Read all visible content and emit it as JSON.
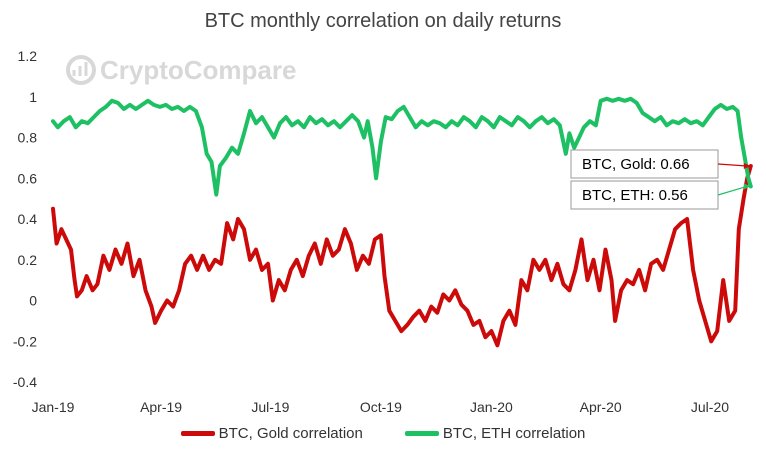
{
  "colors": {
    "gold": "#cc0a0a",
    "eth": "#1ec064",
    "callout_border": "#9a9a9a",
    "watermark": "#d8d8d8"
  },
  "watermark": {
    "icon": "bar-chart-circle-icon",
    "text": "CryptoCompare"
  },
  "callouts": {
    "gold": "BTC, Gold: 0.66",
    "eth": "BTC, ETH: 0.56"
  },
  "chart_data": {
    "type": "line",
    "title": "BTC monthly correlation on daily returns",
    "xlabel": "",
    "ylabel": "",
    "x_ticks": [
      "Jan-19",
      "Apr-19",
      "Jul-19",
      "Oct-19",
      "Jan-20",
      "Apr-20",
      "Jul-20"
    ],
    "y_ticks": [
      "-0.4",
      "-0.2",
      "0",
      "0.2",
      "0.4",
      "0.6",
      "0.8",
      "1",
      "1.2"
    ],
    "ylim": [
      -0.4,
      1.2
    ],
    "grid": false,
    "legend_position": "bottom",
    "series": [
      {
        "name": "BTC, Gold correlation",
        "color": "#cc0a0a",
        "points": [
          [
            "2019-01-01",
            0.45
          ],
          [
            "2019-01-04",
            0.28
          ],
          [
            "2019-01-08",
            0.35
          ],
          [
            "2019-01-12",
            0.3
          ],
          [
            "2019-01-16",
            0.25
          ],
          [
            "2019-01-19",
            0.1
          ],
          [
            "2019-01-21",
            0.02
          ],
          [
            "2019-01-25",
            0.05
          ],
          [
            "2019-01-29",
            0.12
          ],
          [
            "2019-02-03",
            0.05
          ],
          [
            "2019-02-07",
            0.08
          ],
          [
            "2019-02-12",
            0.22
          ],
          [
            "2019-02-17",
            0.15
          ],
          [
            "2019-02-22",
            0.25
          ],
          [
            "2019-02-27",
            0.18
          ],
          [
            "2019-03-04",
            0.28
          ],
          [
            "2019-03-09",
            0.12
          ],
          [
            "2019-03-14",
            0.2
          ],
          [
            "2019-03-19",
            0.05
          ],
          [
            "2019-03-24",
            -0.03
          ],
          [
            "2019-03-27",
            -0.11
          ],
          [
            "2019-04-01",
            -0.05
          ],
          [
            "2019-04-06",
            0.0
          ],
          [
            "2019-04-11",
            -0.03
          ],
          [
            "2019-04-16",
            0.05
          ],
          [
            "2019-04-21",
            0.18
          ],
          [
            "2019-04-26",
            0.22
          ],
          [
            "2019-05-01",
            0.15
          ],
          [
            "2019-05-06",
            0.22
          ],
          [
            "2019-05-11",
            0.15
          ],
          [
            "2019-05-16",
            0.2
          ],
          [
            "2019-05-21",
            0.18
          ],
          [
            "2019-05-26",
            0.38
          ],
          [
            "2019-05-31",
            0.3
          ],
          [
            "2019-06-04",
            0.4
          ],
          [
            "2019-06-09",
            0.35
          ],
          [
            "2019-06-14",
            0.2
          ],
          [
            "2019-06-19",
            0.25
          ],
          [
            "2019-06-24",
            0.15
          ],
          [
            "2019-06-29",
            0.18
          ],
          [
            "2019-07-03",
            0.0
          ],
          [
            "2019-07-08",
            0.1
          ],
          [
            "2019-07-13",
            0.05
          ],
          [
            "2019-07-18",
            0.15
          ],
          [
            "2019-07-23",
            0.2
          ],
          [
            "2019-07-28",
            0.12
          ],
          [
            "2019-08-02",
            0.22
          ],
          [
            "2019-08-07",
            0.28
          ],
          [
            "2019-08-12",
            0.18
          ],
          [
            "2019-08-17",
            0.3
          ],
          [
            "2019-08-22",
            0.22
          ],
          [
            "2019-08-27",
            0.25
          ],
          [
            "2019-09-01",
            0.35
          ],
          [
            "2019-09-06",
            0.28
          ],
          [
            "2019-09-11",
            0.15
          ],
          [
            "2019-09-16",
            0.22
          ],
          [
            "2019-09-21",
            0.18
          ],
          [
            "2019-09-26",
            0.3
          ],
          [
            "2019-10-01",
            0.32
          ],
          [
            "2019-10-04",
            0.12
          ],
          [
            "2019-10-08",
            -0.05
          ],
          [
            "2019-10-13",
            -0.1
          ],
          [
            "2019-10-18",
            -0.15
          ],
          [
            "2019-10-23",
            -0.12
          ],
          [
            "2019-10-28",
            -0.08
          ],
          [
            "2019-11-02",
            -0.05
          ],
          [
            "2019-11-07",
            -0.1
          ],
          [
            "2019-11-12",
            -0.03
          ],
          [
            "2019-11-17",
            -0.06
          ],
          [
            "2019-11-22",
            0.03
          ],
          [
            "2019-11-27",
            0.0
          ],
          [
            "2019-12-02",
            0.05
          ],
          [
            "2019-12-07",
            -0.02
          ],
          [
            "2019-12-12",
            -0.05
          ],
          [
            "2019-12-17",
            -0.12
          ],
          [
            "2019-12-22",
            -0.1
          ],
          [
            "2019-12-27",
            -0.18
          ],
          [
            "2020-01-01",
            -0.15
          ],
          [
            "2020-01-06",
            -0.22
          ],
          [
            "2020-01-11",
            -0.1
          ],
          [
            "2020-01-16",
            -0.05
          ],
          [
            "2020-01-21",
            -0.12
          ],
          [
            "2020-01-26",
            0.1
          ],
          [
            "2020-01-31",
            0.05
          ],
          [
            "2020-02-05",
            0.2
          ],
          [
            "2020-02-10",
            0.15
          ],
          [
            "2020-02-15",
            0.2
          ],
          [
            "2020-02-20",
            0.1
          ],
          [
            "2020-02-25",
            0.18
          ],
          [
            "2020-03-01",
            0.08
          ],
          [
            "2020-03-06",
            0.05
          ],
          [
            "2020-03-11",
            0.15
          ],
          [
            "2020-03-16",
            0.3
          ],
          [
            "2020-03-21",
            0.1
          ],
          [
            "2020-03-26",
            0.2
          ],
          [
            "2020-03-31",
            0.05
          ],
          [
            "2020-04-05",
            0.25
          ],
          [
            "2020-04-10",
            0.1
          ],
          [
            "2020-04-13",
            -0.1
          ],
          [
            "2020-04-18",
            0.05
          ],
          [
            "2020-04-23",
            0.1
          ],
          [
            "2020-04-28",
            0.08
          ],
          [
            "2020-05-03",
            0.15
          ],
          [
            "2020-05-08",
            0.05
          ],
          [
            "2020-05-13",
            0.18
          ],
          [
            "2020-05-18",
            0.2
          ],
          [
            "2020-05-23",
            0.15
          ],
          [
            "2020-05-28",
            0.25
          ],
          [
            "2020-06-02",
            0.35
          ],
          [
            "2020-06-07",
            0.38
          ],
          [
            "2020-06-12",
            0.4
          ],
          [
            "2020-06-17",
            0.15
          ],
          [
            "2020-06-22",
            0.0
          ],
          [
            "2020-06-27",
            -0.1
          ],
          [
            "2020-07-02",
            -0.2
          ],
          [
            "2020-07-07",
            -0.15
          ],
          [
            "2020-07-12",
            0.1
          ],
          [
            "2020-07-17",
            -0.1
          ],
          [
            "2020-07-22",
            -0.05
          ],
          [
            "2020-07-25",
            0.35
          ],
          [
            "2020-07-29",
            0.5
          ],
          [
            "2020-08-01",
            0.6
          ],
          [
            "2020-08-04",
            0.66
          ]
        ]
      },
      {
        "name": "BTC, ETH correlation",
        "color": "#1ec064",
        "points": [
          [
            "2019-01-01",
            0.88
          ],
          [
            "2019-01-05",
            0.85
          ],
          [
            "2019-01-10",
            0.88
          ],
          [
            "2019-01-15",
            0.9
          ],
          [
            "2019-01-20",
            0.85
          ],
          [
            "2019-01-25",
            0.88
          ],
          [
            "2019-01-30",
            0.87
          ],
          [
            "2019-02-04",
            0.9
          ],
          [
            "2019-02-09",
            0.93
          ],
          [
            "2019-02-14",
            0.95
          ],
          [
            "2019-02-19",
            0.98
          ],
          [
            "2019-02-24",
            0.97
          ],
          [
            "2019-03-01",
            0.94
          ],
          [
            "2019-03-06",
            0.96
          ],
          [
            "2019-03-11",
            0.94
          ],
          [
            "2019-03-16",
            0.96
          ],
          [
            "2019-03-21",
            0.98
          ],
          [
            "2019-03-26",
            0.96
          ],
          [
            "2019-03-31",
            0.95
          ],
          [
            "2019-04-05",
            0.96
          ],
          [
            "2019-04-10",
            0.94
          ],
          [
            "2019-04-15",
            0.95
          ],
          [
            "2019-04-20",
            0.93
          ],
          [
            "2019-04-25",
            0.95
          ],
          [
            "2019-04-30",
            0.93
          ],
          [
            "2019-05-05",
            0.85
          ],
          [
            "2019-05-09",
            0.72
          ],
          [
            "2019-05-13",
            0.68
          ],
          [
            "2019-05-17",
            0.52
          ],
          [
            "2019-05-20",
            0.66
          ],
          [
            "2019-05-25",
            0.7
          ],
          [
            "2019-05-30",
            0.75
          ],
          [
            "2019-06-04",
            0.72
          ],
          [
            "2019-06-09",
            0.82
          ],
          [
            "2019-06-14",
            0.93
          ],
          [
            "2019-06-19",
            0.87
          ],
          [
            "2019-06-24",
            0.9
          ],
          [
            "2019-06-29",
            0.85
          ],
          [
            "2019-07-04",
            0.8
          ],
          [
            "2019-07-09",
            0.87
          ],
          [
            "2019-07-14",
            0.9
          ],
          [
            "2019-07-19",
            0.86
          ],
          [
            "2019-07-24",
            0.88
          ],
          [
            "2019-07-29",
            0.85
          ],
          [
            "2019-08-03",
            0.9
          ],
          [
            "2019-08-08",
            0.87
          ],
          [
            "2019-08-13",
            0.89
          ],
          [
            "2019-08-18",
            0.86
          ],
          [
            "2019-08-23",
            0.88
          ],
          [
            "2019-08-28",
            0.85
          ],
          [
            "2019-09-02",
            0.88
          ],
          [
            "2019-09-07",
            0.91
          ],
          [
            "2019-09-12",
            0.88
          ],
          [
            "2019-09-17",
            0.8
          ],
          [
            "2019-09-20",
            0.88
          ],
          [
            "2019-09-24",
            0.75
          ],
          [
            "2019-09-27",
            0.6
          ],
          [
            "2019-10-01",
            0.78
          ],
          [
            "2019-10-05",
            0.9
          ],
          [
            "2019-10-10",
            0.89
          ],
          [
            "2019-10-15",
            0.93
          ],
          [
            "2019-10-20",
            0.95
          ],
          [
            "2019-10-25",
            0.9
          ],
          [
            "2019-10-30",
            0.85
          ],
          [
            "2019-11-04",
            0.88
          ],
          [
            "2019-11-09",
            0.86
          ],
          [
            "2019-11-14",
            0.88
          ],
          [
            "2019-11-19",
            0.87
          ],
          [
            "2019-11-24",
            0.85
          ],
          [
            "2019-11-29",
            0.88
          ],
          [
            "2019-12-04",
            0.86
          ],
          [
            "2019-12-09",
            0.9
          ],
          [
            "2019-12-14",
            0.88
          ],
          [
            "2019-12-19",
            0.85
          ],
          [
            "2019-12-24",
            0.9
          ],
          [
            "2019-12-29",
            0.88
          ],
          [
            "2020-01-03",
            0.85
          ],
          [
            "2020-01-08",
            0.9
          ],
          [
            "2020-01-13",
            0.88
          ],
          [
            "2020-01-18",
            0.86
          ],
          [
            "2020-01-23",
            0.9
          ],
          [
            "2020-01-28",
            0.88
          ],
          [
            "2020-02-02",
            0.85
          ],
          [
            "2020-02-07",
            0.88
          ],
          [
            "2020-02-12",
            0.9
          ],
          [
            "2020-02-17",
            0.87
          ],
          [
            "2020-02-22",
            0.89
          ],
          [
            "2020-02-27",
            0.86
          ],
          [
            "2020-03-03",
            0.72
          ],
          [
            "2020-03-06",
            0.82
          ],
          [
            "2020-03-10",
            0.75
          ],
          [
            "2020-03-14",
            0.8
          ],
          [
            "2020-03-18",
            0.85
          ],
          [
            "2020-03-23",
            0.88
          ],
          [
            "2020-03-28",
            0.86
          ],
          [
            "2020-04-01",
            0.98
          ],
          [
            "2020-04-06",
            0.99
          ],
          [
            "2020-04-11",
            0.98
          ],
          [
            "2020-04-16",
            0.99
          ],
          [
            "2020-04-21",
            0.98
          ],
          [
            "2020-04-26",
            0.99
          ],
          [
            "2020-05-01",
            0.97
          ],
          [
            "2020-05-06",
            0.92
          ],
          [
            "2020-05-11",
            0.9
          ],
          [
            "2020-05-16",
            0.88
          ],
          [
            "2020-05-21",
            0.9
          ],
          [
            "2020-05-26",
            0.86
          ],
          [
            "2020-05-31",
            0.88
          ],
          [
            "2020-06-05",
            0.87
          ],
          [
            "2020-06-10",
            0.89
          ],
          [
            "2020-06-15",
            0.87
          ],
          [
            "2020-06-20",
            0.88
          ],
          [
            "2020-06-25",
            0.86
          ],
          [
            "2020-06-30",
            0.9
          ],
          [
            "2020-07-05",
            0.94
          ],
          [
            "2020-07-10",
            0.96
          ],
          [
            "2020-07-15",
            0.94
          ],
          [
            "2020-07-20",
            0.95
          ],
          [
            "2020-07-24",
            0.93
          ],
          [
            "2020-07-27",
            0.8
          ],
          [
            "2020-07-30",
            0.7
          ],
          [
            "2020-08-02",
            0.6
          ],
          [
            "2020-08-04",
            0.56
          ]
        ]
      }
    ]
  }
}
